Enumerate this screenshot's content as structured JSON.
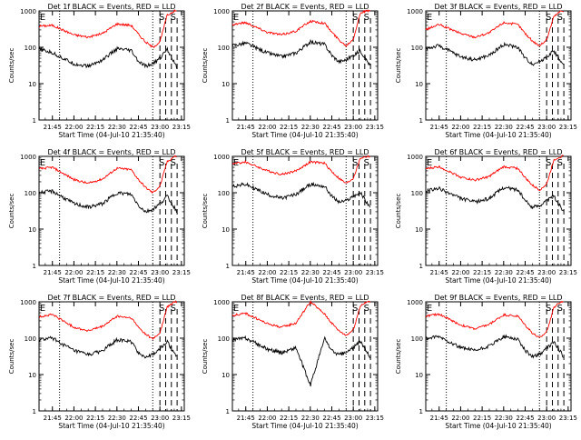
{
  "colors": {
    "events": "#000000",
    "lld": "#ff0000",
    "axis": "#000000",
    "background": "#ffffff"
  },
  "labels": {
    "ylabel": "Counts/sec",
    "xlabel": "Start Time (04-Jul-10 21:35:40)",
    "xticks": [
      "21:45",
      "22:00",
      "22:15",
      "22:30",
      "22:45",
      "23:00",
      "23:15"
    ],
    "yticks": [
      "1",
      "10",
      "100",
      "1000"
    ],
    "markers": [
      "E",
      "S",
      "S"
    ]
  },
  "chart_data": [
    {
      "type": "line",
      "title": "Det 1f BLACK = Events, RED = LLD",
      "yscale": "log",
      "ylim": [
        1,
        1000
      ],
      "xlim": [
        "21:35:40",
        "23:17:00"
      ],
      "dotted_x": [
        "21:50",
        "22:55"
      ],
      "dashed_x": [
        "23:00",
        "23:04",
        "23:08",
        "23:12"
      ],
      "series": [
        {
          "name": "RED = LLD",
          "x": [
            "21:35",
            "21:45",
            "22:00",
            "22:10",
            "22:20",
            "22:30",
            "22:40",
            "22:45",
            "22:50",
            "22:55",
            "23:00",
            "23:05",
            "23:10",
            "23:12"
          ],
          "y": [
            380,
            400,
            220,
            190,
            240,
            440,
            400,
            230,
            140,
            100,
            140,
            750,
            1000,
            1000
          ]
        },
        {
          "name": "BLACK = Events",
          "x": [
            "21:35",
            "21:45",
            "22:00",
            "22:10",
            "22:20",
            "22:30",
            "22:40",
            "22:45",
            "22:50",
            "22:55",
            "23:00",
            "23:05",
            "23:10",
            "23:12"
          ],
          "y": [
            90,
            70,
            35,
            30,
            45,
            90,
            80,
            40,
            30,
            35,
            50,
            90,
            40,
            25
          ]
        }
      ]
    },
    {
      "type": "line",
      "title": "Det 2f BLACK = Events, RED = LLD",
      "yscale": "log",
      "ylim": [
        1,
        1000
      ],
      "xlim": [
        "21:35:40",
        "23:17:00"
      ],
      "dotted_x": [
        "21:50",
        "22:55"
      ],
      "dashed_x": [
        "23:00",
        "23:04",
        "23:08",
        "23:12"
      ],
      "series": [
        {
          "name": "RED = LLD",
          "x": [
            "21:35",
            "21:45",
            "22:00",
            "22:10",
            "22:20",
            "22:30",
            "22:40",
            "22:45",
            "22:50",
            "22:55",
            "23:00",
            "23:05",
            "23:10",
            "23:12"
          ],
          "y": [
            420,
            480,
            260,
            220,
            280,
            520,
            460,
            260,
            160,
            110,
            170,
            900,
            1000,
            1000
          ]
        },
        {
          "name": "BLACK = Events",
          "x": [
            "21:35",
            "21:45",
            "22:00",
            "22:10",
            "22:20",
            "22:30",
            "22:40",
            "22:45",
            "22:50",
            "22:55",
            "23:00",
            "23:05",
            "23:10",
            "23:12"
          ],
          "y": [
            110,
            130,
            70,
            55,
            70,
            140,
            120,
            60,
            40,
            45,
            60,
            80,
            40,
            30
          ]
        }
      ]
    },
    {
      "type": "line",
      "title": "Det 3f BLACK = Events, RED = LLD",
      "yscale": "log",
      "ylim": [
        1,
        1000
      ],
      "xlim": [
        "21:35:40",
        "23:17:00"
      ],
      "dotted_x": [
        "21:50",
        "22:55"
      ],
      "dashed_x": [
        "23:00",
        "23:04",
        "23:08",
        "23:12"
      ],
      "series": [
        {
          "name": "RED = LLD",
          "x": [
            "21:35",
            "21:45",
            "22:00",
            "22:10",
            "22:20",
            "22:30",
            "22:40",
            "22:45",
            "22:50",
            "22:55",
            "23:00",
            "23:05",
            "23:10",
            "23:12"
          ],
          "y": [
            300,
            420,
            240,
            190,
            250,
            480,
            420,
            240,
            150,
            110,
            160,
            700,
            1000,
            1000
          ]
        },
        {
          "name": "BLACK = Events",
          "x": [
            "21:35",
            "21:45",
            "22:00",
            "22:10",
            "22:20",
            "22:30",
            "22:40",
            "22:45",
            "22:50",
            "22:55",
            "23:00",
            "23:05",
            "23:10",
            "23:12"
          ],
          "y": [
            90,
            110,
            55,
            45,
            60,
            120,
            100,
            50,
            35,
            40,
            55,
            80,
            40,
            30
          ]
        }
      ]
    },
    {
      "type": "line",
      "title": "Det 4f BLACK = Events, RED = LLD",
      "yscale": "log",
      "ylim": [
        1,
        1000
      ],
      "xlim": [
        "21:35:40",
        "23:17:00"
      ],
      "dotted_x": [
        "21:50",
        "22:55"
      ],
      "dashed_x": [
        "23:00",
        "23:04",
        "23:08",
        "23:12"
      ],
      "series": [
        {
          "name": "RED = LLD",
          "x": [
            "21:35",
            "21:45",
            "22:00",
            "22:10",
            "22:20",
            "22:30",
            "22:40",
            "22:45",
            "22:50",
            "22:55",
            "23:00",
            "23:05",
            "23:10",
            "23:12"
          ],
          "y": [
            450,
            500,
            230,
            180,
            240,
            470,
            430,
            230,
            140,
            100,
            150,
            700,
            1000,
            1000
          ]
        },
        {
          "name": "BLACK = Events",
          "x": [
            "21:35",
            "21:45",
            "22:00",
            "22:10",
            "22:20",
            "22:30",
            "22:40",
            "22:45",
            "22:50",
            "22:55",
            "23:00",
            "23:05",
            "23:10",
            "23:12"
          ],
          "y": [
            100,
            110,
            50,
            40,
            50,
            100,
            90,
            45,
            30,
            35,
            50,
            80,
            40,
            30
          ]
        }
      ]
    },
    {
      "type": "line",
      "title": "Det 5f BLACK = Events, RED = LLD",
      "yscale": "log",
      "ylim": [
        1,
        1000
      ],
      "xlim": [
        "21:35:40",
        "23:17:00"
      ],
      "dotted_x": [
        "21:50",
        "22:55"
      ],
      "dashed_x": [
        "23:00",
        "23:04",
        "23:08",
        "23:12"
      ],
      "series": [
        {
          "name": "RED = LLD",
          "x": [
            "21:35",
            "21:45",
            "22:00",
            "22:10",
            "22:20",
            "22:30",
            "22:40",
            "22:45",
            "22:50",
            "22:55",
            "23:00",
            "23:05",
            "23:10",
            "23:12"
          ],
          "y": [
            620,
            700,
            400,
            320,
            400,
            700,
            650,
            380,
            250,
            180,
            250,
            900,
            1000,
            1000
          ]
        },
        {
          "name": "BLACK = Events",
          "x": [
            "21:35",
            "21:45",
            "22:00",
            "22:10",
            "22:20",
            "22:30",
            "22:40",
            "22:45",
            "22:50",
            "22:55",
            "23:00",
            "23:05",
            "23:10",
            "23:12"
          ],
          "y": [
            150,
            170,
            90,
            70,
            90,
            170,
            150,
            80,
            55,
            60,
            80,
            100,
            50,
            40
          ]
        }
      ]
    },
    {
      "type": "line",
      "title": "Det 6f BLACK = Events, RED = LLD",
      "yscale": "log",
      "ylim": [
        1,
        1000
      ],
      "xlim": [
        "21:35:40",
        "23:17:00"
      ],
      "dotted_x": [
        "21:50",
        "22:55"
      ],
      "dashed_x": [
        "23:00",
        "23:04",
        "23:08",
        "23:12"
      ],
      "series": [
        {
          "name": "RED = LLD",
          "x": [
            "21:35",
            "21:45",
            "22:00",
            "22:10",
            "22:20",
            "22:30",
            "22:40",
            "22:45",
            "22:50",
            "22:55",
            "23:00",
            "23:05",
            "23:10",
            "23:12"
          ],
          "y": [
            450,
            520,
            270,
            220,
            280,
            520,
            470,
            260,
            160,
            120,
            170,
            800,
            1000,
            1000
          ]
        },
        {
          "name": "BLACK = Events",
          "x": [
            "21:35",
            "21:45",
            "22:00",
            "22:10",
            "22:20",
            "22:30",
            "22:40",
            "22:45",
            "22:50",
            "22:55",
            "23:00",
            "23:05",
            "23:10",
            "23:12"
          ],
          "y": [
            110,
            130,
            70,
            55,
            70,
            140,
            120,
            60,
            40,
            45,
            60,
            80,
            40,
            30
          ]
        }
      ]
    },
    {
      "type": "line",
      "title": "Det 7f BLACK = Events, RED = LLD",
      "yscale": "log",
      "ylim": [
        1,
        1000
      ],
      "xlim": [
        "21:35:40",
        "23:17:00"
      ],
      "dotted_x": [
        "21:50",
        "22:55"
      ],
      "dashed_x": [
        "23:00",
        "23:04",
        "23:08",
        "23:12"
      ],
      "series": [
        {
          "name": "RED = LLD",
          "x": [
            "21:35",
            "21:45",
            "22:00",
            "22:10",
            "22:20",
            "22:30",
            "22:40",
            "22:45",
            "22:50",
            "22:55",
            "23:00",
            "23:05",
            "23:10",
            "23:12"
          ],
          "y": [
            380,
            450,
            200,
            160,
            210,
            400,
            360,
            200,
            130,
            95,
            140,
            700,
            1000,
            1000
          ]
        },
        {
          "name": "BLACK = Events",
          "x": [
            "21:35",
            "21:45",
            "22:00",
            "22:10",
            "22:20",
            "22:30",
            "22:40",
            "22:45",
            "22:50",
            "22:55",
            "23:00",
            "23:05",
            "23:10",
            "23:12"
          ],
          "y": [
            90,
            100,
            45,
            35,
            45,
            90,
            80,
            40,
            30,
            35,
            50,
            80,
            40,
            30
          ]
        }
      ]
    },
    {
      "type": "line",
      "title": "Det 8f BLACK = Events, RED = LLD",
      "yscale": "log",
      "ylim": [
        1,
        1000
      ],
      "xlim": [
        "21:35:40",
        "23:17:00"
      ],
      "dotted_x": [
        "21:50",
        "22:55"
      ],
      "dashed_x": [
        "23:00",
        "23:04",
        "23:08",
        "23:12"
      ],
      "series": [
        {
          "name": "RED = LLD",
          "x": [
            "21:35",
            "21:45",
            "22:00",
            "22:10",
            "22:20",
            "22:30",
            "22:40",
            "22:45",
            "22:50",
            "22:55",
            "23:00",
            "23:05",
            "23:10",
            "23:12"
          ],
          "y": [
            420,
            480,
            250,
            200,
            260,
            1000,
            460,
            260,
            160,
            120,
            170,
            800,
            1000,
            1000
          ]
        },
        {
          "name": "BLACK = Events",
          "x": [
            "21:35",
            "21:45",
            "22:00",
            "22:10",
            "22:20",
            "22:30",
            "22:40",
            "22:45",
            "22:50",
            "22:55",
            "23:00",
            "23:05",
            "23:10",
            "23:12"
          ],
          "y": [
            90,
            100,
            50,
            40,
            55,
            5,
            100,
            45,
            35,
            40,
            55,
            80,
            40,
            30
          ]
        }
      ]
    },
    {
      "type": "line",
      "title": "Det 9f BLACK = Events, RED = LLD",
      "yscale": "log",
      "ylim": [
        1,
        1000
      ],
      "xlim": [
        "21:35:40",
        "23:17:00"
      ],
      "dotted_x": [
        "21:50",
        "22:55"
      ],
      "dashed_x": [
        "23:00",
        "23:04",
        "23:08",
        "23:12"
      ],
      "series": [
        {
          "name": "RED = LLD",
          "x": [
            "21:35",
            "21:45",
            "22:00",
            "22:10",
            "22:20",
            "22:30",
            "22:40",
            "22:45",
            "22:50",
            "22:55",
            "23:00",
            "23:05",
            "23:10",
            "23:12"
          ],
          "y": [
            400,
            460,
            230,
            180,
            240,
            440,
            400,
            230,
            140,
            100,
            150,
            700,
            1000,
            1000
          ]
        },
        {
          "name": "BLACK = Events",
          "x": [
            "21:35",
            "21:45",
            "22:00",
            "22:10",
            "22:20",
            "22:30",
            "22:40",
            "22:45",
            "22:50",
            "22:55",
            "23:00",
            "23:05",
            "23:10",
            "23:12"
          ],
          "y": [
            95,
            110,
            55,
            45,
            60,
            110,
            95,
            45,
            32,
            36,
            52,
            80,
            40,
            30
          ]
        }
      ]
    }
  ]
}
